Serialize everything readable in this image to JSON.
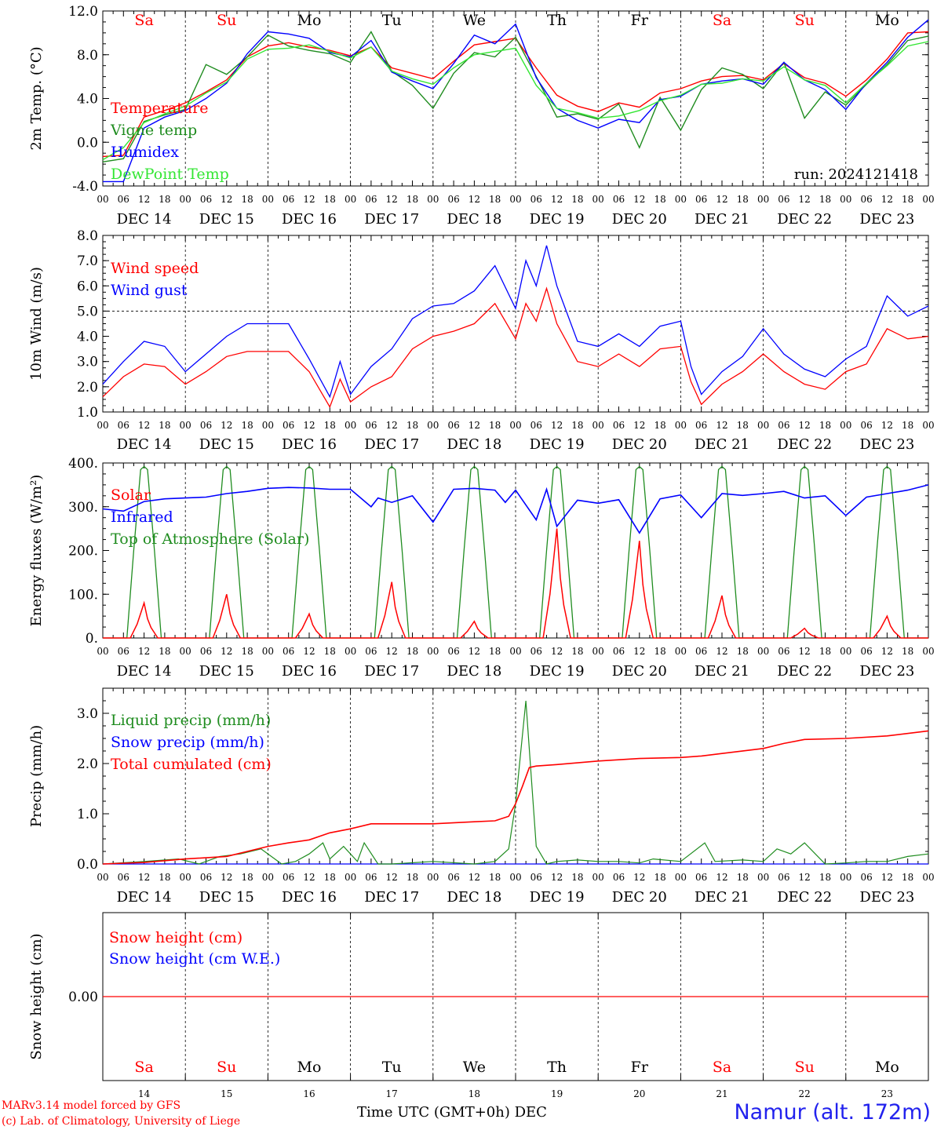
{
  "run_label": "run: 2024121418",
  "dayNames": [
    "Sa",
    "Su",
    "Mo",
    "Tu",
    "We",
    "Th",
    "Fr",
    "Sa",
    "Su",
    "Mo"
  ],
  "dayColors": [
    "#ff0000",
    "#ff0000",
    "#000000",
    "#000000",
    "#000000",
    "#000000",
    "#000000",
    "#ff0000",
    "#ff0000",
    "#000000"
  ],
  "dateLabels": [
    "DEC 14",
    "DEC 15",
    "DEC 16",
    "DEC 17",
    "DEC 18",
    "DEC 19",
    "DEC 20",
    "DEC 21",
    "DEC 22",
    "DEC 23"
  ],
  "dayNumbers": [
    "14",
    "15",
    "16",
    "17",
    "18",
    "19",
    "20",
    "21",
    "22",
    "23"
  ],
  "hourLabels": [
    "00",
    "06",
    "12",
    "18"
  ],
  "footer": {
    "credit_line1": "MARv3.14 model forced by GFS",
    "credit_line2": "(c) Lab. of Climatology, University of Liege",
    "xaxis_title": "Time UTC (GMT+0h) DEC",
    "station": "Namur (alt. 172m)"
  },
  "chart_data": [
    {
      "type": "line",
      "id": "temp",
      "ylabel": "2m Temp. (°C)",
      "ylim": [
        -4,
        12
      ],
      "yticks": [
        -4,
        0,
        4,
        8,
        12
      ],
      "ytick_labels": [
        "-4.0",
        "0.0",
        "4.0",
        "8.0",
        "12.0"
      ],
      "x_unit": "hours since 2024-12-14 00 UTC",
      "legend": [
        {
          "label": "Temperature",
          "color": "#ff0000"
        },
        {
          "label": "Vigne temp",
          "color": "#1f8c1f"
        },
        {
          "label": "Humidex",
          "color": "#0000ff"
        },
        {
          "label": "DewPoint Temp",
          "color": "#33e633"
        }
      ],
      "series": [
        {
          "name": "Temperature",
          "color": "#ff0000",
          "x": [
            0,
            6,
            12,
            18,
            24,
            30,
            36,
            42,
            48,
            54,
            60,
            66,
            72,
            78,
            84,
            90,
            96,
            102,
            108,
            114,
            120,
            126,
            132,
            138,
            144,
            150,
            156,
            162,
            168,
            174,
            180,
            186,
            192,
            198,
            204,
            210,
            216,
            222,
            228,
            234,
            240
          ],
          "y": [
            -1.3,
            -1.2,
            2.3,
            2.9,
            3.6,
            4.6,
            5.7,
            7.8,
            8.8,
            9.1,
            8.7,
            8.4,
            7.9,
            8.7,
            6.8,
            6.3,
            5.8,
            7.4,
            8.9,
            9.2,
            9.5,
            6.8,
            4.3,
            3.3,
            2.8,
            3.6,
            3.2,
            4.5,
            4.9,
            5.6,
            6.0,
            6.1,
            5.7,
            7.2,
            5.9,
            5.4,
            4.2,
            5.7,
            7.6,
            10.0,
            10.1
          ]
        },
        {
          "name": "Vigne temp",
          "color": "#1f8c1f",
          "x": [
            0,
            6,
            12,
            18,
            24,
            30,
            36,
            42,
            48,
            54,
            60,
            66,
            72,
            78,
            84,
            90,
            96,
            102,
            108,
            114,
            120,
            126,
            132,
            138,
            144,
            150,
            156,
            162,
            168,
            174,
            180,
            186,
            192,
            198,
            204,
            210,
            216,
            222,
            228,
            234,
            240
          ],
          "y": [
            -1.8,
            -1.5,
            1.9,
            2.5,
            3.0,
            7.1,
            6.2,
            7.8,
            9.8,
            8.8,
            8.4,
            8.1,
            7.3,
            10.1,
            6.5,
            5.2,
            3.1,
            6.3,
            8.2,
            7.8,
            9.6,
            6.0,
            2.3,
            2.6,
            2.1,
            3.5,
            -0.5,
            4.1,
            1.1,
            4.8,
            6.8,
            6.2,
            4.9,
            7.3,
            2.2,
            4.6,
            3.4,
            5.3,
            7.1,
            9.3,
            9.7
          ]
        },
        {
          "name": "Humidex",
          "color": "#0000ff",
          "x": [
            0,
            6,
            12,
            18,
            24,
            30,
            36,
            42,
            48,
            54,
            60,
            66,
            72,
            78,
            84,
            90,
            96,
            102,
            108,
            114,
            120,
            126,
            132,
            138,
            144,
            150,
            156,
            162,
            168,
            174,
            180,
            186,
            192,
            198,
            204,
            210,
            216,
            222,
            228,
            234,
            240
          ],
          "y": [
            -3.6,
            -3.6,
            1.3,
            2.3,
            2.9,
            4.0,
            5.4,
            8.1,
            10.1,
            9.9,
            9.5,
            8.2,
            7.8,
            9.3,
            6.4,
            5.6,
            4.9,
            7.2,
            9.8,
            9.0,
            10.8,
            5.9,
            3.1,
            2.0,
            1.3,
            2.1,
            1.8,
            3.9,
            4.2,
            5.3,
            5.6,
            5.8,
            5.3,
            7.3,
            5.7,
            4.8,
            3.0,
            5.4,
            7.3,
            9.6,
            11.2
          ]
        },
        {
          "name": "DewPoint Temp",
          "color": "#33e633",
          "x": [
            0,
            6,
            12,
            18,
            24,
            30,
            36,
            42,
            48,
            54,
            60,
            66,
            72,
            78,
            84,
            90,
            96,
            102,
            108,
            114,
            120,
            126,
            132,
            138,
            144,
            150,
            156,
            162,
            168,
            174,
            180,
            186,
            192,
            198,
            204,
            210,
            216,
            222,
            228,
            234,
            240
          ],
          "y": [
            -1.6,
            -0.5,
            1.8,
            2.6,
            3.3,
            4.5,
            5.5,
            7.6,
            8.5,
            8.6,
            8.9,
            8.3,
            7.7,
            8.7,
            6.5,
            5.8,
            5.3,
            6.8,
            8.0,
            8.3,
            8.6,
            5.2,
            3.1,
            2.7,
            2.2,
            2.4,
            2.9,
            3.8,
            4.3,
            5.3,
            5.4,
            5.8,
            5.6,
            6.9,
            5.7,
            5.2,
            3.6,
            5.4,
            7.0,
            8.8,
            9.2
          ]
        }
      ]
    },
    {
      "type": "line",
      "id": "wind",
      "ylabel": "10m Wind (m/s)",
      "ylim": [
        1,
        8
      ],
      "yticks": [
        1,
        2,
        3,
        4,
        5,
        6,
        7,
        8
      ],
      "ytick_labels": [
        "1.0",
        "2.0",
        "3.0",
        "4.0",
        "5.0",
        "6.0",
        "7.0",
        "8.0"
      ],
      "reference_line": 5.0,
      "legend": [
        {
          "label": "Wind speed",
          "color": "#ff0000"
        },
        {
          "label": "Wind gust",
          "color": "#0000ff"
        }
      ],
      "series": [
        {
          "name": "Wind speed",
          "color": "#ff0000",
          "x": [
            0,
            6,
            12,
            18,
            24,
            30,
            36,
            42,
            48,
            54,
            60,
            66,
            69,
            72,
            78,
            84,
            90,
            96,
            102,
            108,
            114,
            120,
            123,
            126,
            129,
            132,
            138,
            144,
            150,
            156,
            162,
            168,
            171,
            174,
            180,
            186,
            192,
            198,
            204,
            210,
            216,
            222,
            228,
            234,
            240
          ],
          "y": [
            1.6,
            2.4,
            2.9,
            2.8,
            2.1,
            2.6,
            3.2,
            3.4,
            3.4,
            3.4,
            2.6,
            1.2,
            2.3,
            1.4,
            2.0,
            2.4,
            3.5,
            4.0,
            4.2,
            4.5,
            5.3,
            3.9,
            5.3,
            4.6,
            5.9,
            4.5,
            3.0,
            2.8,
            3.3,
            2.8,
            3.5,
            3.6,
            2.2,
            1.3,
            2.1,
            2.6,
            3.3,
            2.6,
            2.1,
            1.9,
            2.6,
            2.9,
            4.3,
            3.9,
            4.0
          ]
        },
        {
          "name": "Wind gust",
          "color": "#0000ff",
          "x": [
            0,
            6,
            12,
            18,
            24,
            30,
            36,
            42,
            48,
            54,
            60,
            66,
            69,
            72,
            78,
            84,
            90,
            96,
            102,
            108,
            114,
            120,
            123,
            126,
            129,
            132,
            138,
            144,
            150,
            156,
            162,
            168,
            171,
            174,
            180,
            186,
            192,
            198,
            204,
            210,
            216,
            222,
            228,
            234,
            240
          ],
          "y": [
            2.1,
            3.0,
            3.8,
            3.6,
            2.6,
            3.3,
            4.0,
            4.5,
            4.5,
            4.5,
            3.1,
            1.6,
            3.0,
            1.7,
            2.8,
            3.5,
            4.7,
            5.2,
            5.3,
            5.8,
            6.8,
            5.1,
            7.0,
            6.0,
            7.6,
            6.0,
            3.8,
            3.6,
            4.1,
            3.6,
            4.4,
            4.6,
            2.8,
            1.7,
            2.6,
            3.2,
            4.3,
            3.3,
            2.7,
            2.4,
            3.1,
            3.6,
            5.6,
            4.8,
            5.2
          ]
        }
      ]
    },
    {
      "type": "line",
      "id": "flux",
      "ylabel": "Energy fluxes (W/m²)",
      "ylim": [
        0,
        400
      ],
      "yticks": [
        0,
        100,
        200,
        300,
        400
      ],
      "ytick_labels": [
        "0.",
        "100.",
        "200.",
        "300.",
        "400."
      ],
      "legend": [
        {
          "label": "Solar",
          "color": "#ff0000"
        },
        {
          "label": "Infrared",
          "color": "#0000ff"
        },
        {
          "label": "Top of Atmosphere (Solar)",
          "color": "#1f8c1f"
        }
      ],
      "solar_peaks": [
        80,
        100,
        55,
        128,
        38,
        250,
        222,
        97,
        22,
        50
      ],
      "toa_peak": 392,
      "series": [
        {
          "name": "Infrared",
          "color": "#0000ff",
          "x": [
            0,
            6,
            12,
            18,
            24,
            30,
            36,
            42,
            48,
            54,
            60,
            66,
            72,
            78,
            80,
            84,
            90,
            96,
            102,
            108,
            114,
            117,
            120,
            126,
            129,
            132,
            138,
            144,
            150,
            156,
            162,
            168,
            174,
            180,
            186,
            192,
            198,
            204,
            210,
            216,
            222,
            228,
            234,
            240
          ],
          "y": [
            295,
            290,
            312,
            318,
            320,
            322,
            330,
            335,
            342,
            344,
            343,
            340,
            340,
            300,
            320,
            310,
            325,
            265,
            340,
            342,
            338,
            310,
            338,
            270,
            340,
            255,
            315,
            308,
            316,
            240,
            318,
            327,
            275,
            330,
            326,
            330,
            335,
            320,
            325,
            280,
            322,
            330,
            338,
            350
          ]
        }
      ]
    },
    {
      "type": "line",
      "id": "precip",
      "ylabel": "Precip (mm/h)",
      "ylim": [
        0,
        3.5
      ],
      "yticks": [
        0,
        1,
        2,
        3
      ],
      "ytick_labels": [
        "0.0",
        "1.0",
        "2.0",
        "3.0"
      ],
      "legend": [
        {
          "label": "Liquid precip (mm/h)",
          "color": "#1f8c1f"
        },
        {
          "label": "Snow precip (mm/h)",
          "color": "#0000ff"
        },
        {
          "label": "Total cumulated (cm)",
          "color": "#ff0000"
        }
      ],
      "series": [
        {
          "name": "Liquid precip (mm/h)",
          "color": "#1f8c1f",
          "x": [
            0,
            12,
            22,
            28,
            34,
            40,
            46,
            52,
            56,
            60,
            64,
            66,
            70,
            74,
            76,
            80,
            84,
            96,
            108,
            114,
            118,
            120,
            123,
            126,
            129,
            132,
            138,
            144,
            150,
            156,
            160,
            168,
            175,
            178,
            186,
            192,
            196,
            200,
            204,
            210,
            216,
            222,
            228,
            234,
            240
          ],
          "y": [
            0,
            0.05,
            0.1,
            0,
            0.15,
            0.2,
            0.3,
            0,
            0.05,
            0.2,
            0.42,
            0.1,
            0.35,
            0.05,
            0.42,
            0,
            0,
            0.05,
            0,
            0.05,
            0.3,
            1.2,
            3.25,
            0.35,
            0,
            0.05,
            0.08,
            0.05,
            0.05,
            0.02,
            0.1,
            0.05,
            0.42,
            0.05,
            0.08,
            0.05,
            0.3,
            0.2,
            0.42,
            0,
            0.02,
            0.05,
            0.05,
            0.15,
            0.2
          ]
        },
        {
          "name": "Total cumulated (cm)",
          "color": "#ff0000",
          "x": [
            0,
            12,
            24,
            36,
            48,
            54,
            60,
            66,
            72,
            78,
            84,
            96,
            108,
            114,
            118,
            120,
            122,
            124,
            126,
            132,
            144,
            156,
            168,
            174,
            180,
            192,
            198,
            204,
            216,
            228,
            240
          ],
          "y": [
            0,
            0.03,
            0.1,
            0.15,
            0.35,
            0.42,
            0.48,
            0.62,
            0.7,
            0.8,
            0.8,
            0.8,
            0.84,
            0.86,
            0.95,
            1.2,
            1.55,
            1.92,
            1.95,
            1.98,
            2.05,
            2.1,
            2.12,
            2.15,
            2.2,
            2.3,
            2.4,
            2.48,
            2.5,
            2.55,
            2.65
          ]
        }
      ]
    },
    {
      "type": "line",
      "id": "snow",
      "ylabel": "Snow height (cm)",
      "ytick_labels": [
        "0.00"
      ],
      "legend": [
        {
          "label": "Snow height (cm)",
          "color": "#ff0000"
        },
        {
          "label": "Snow height (cm W.E.)",
          "color": "#0000ff"
        }
      ],
      "series": [
        {
          "name": "Snow height (cm)",
          "color": "#ff0000",
          "x": [
            0,
            240
          ],
          "y": [
            0,
            0
          ]
        }
      ]
    }
  ]
}
